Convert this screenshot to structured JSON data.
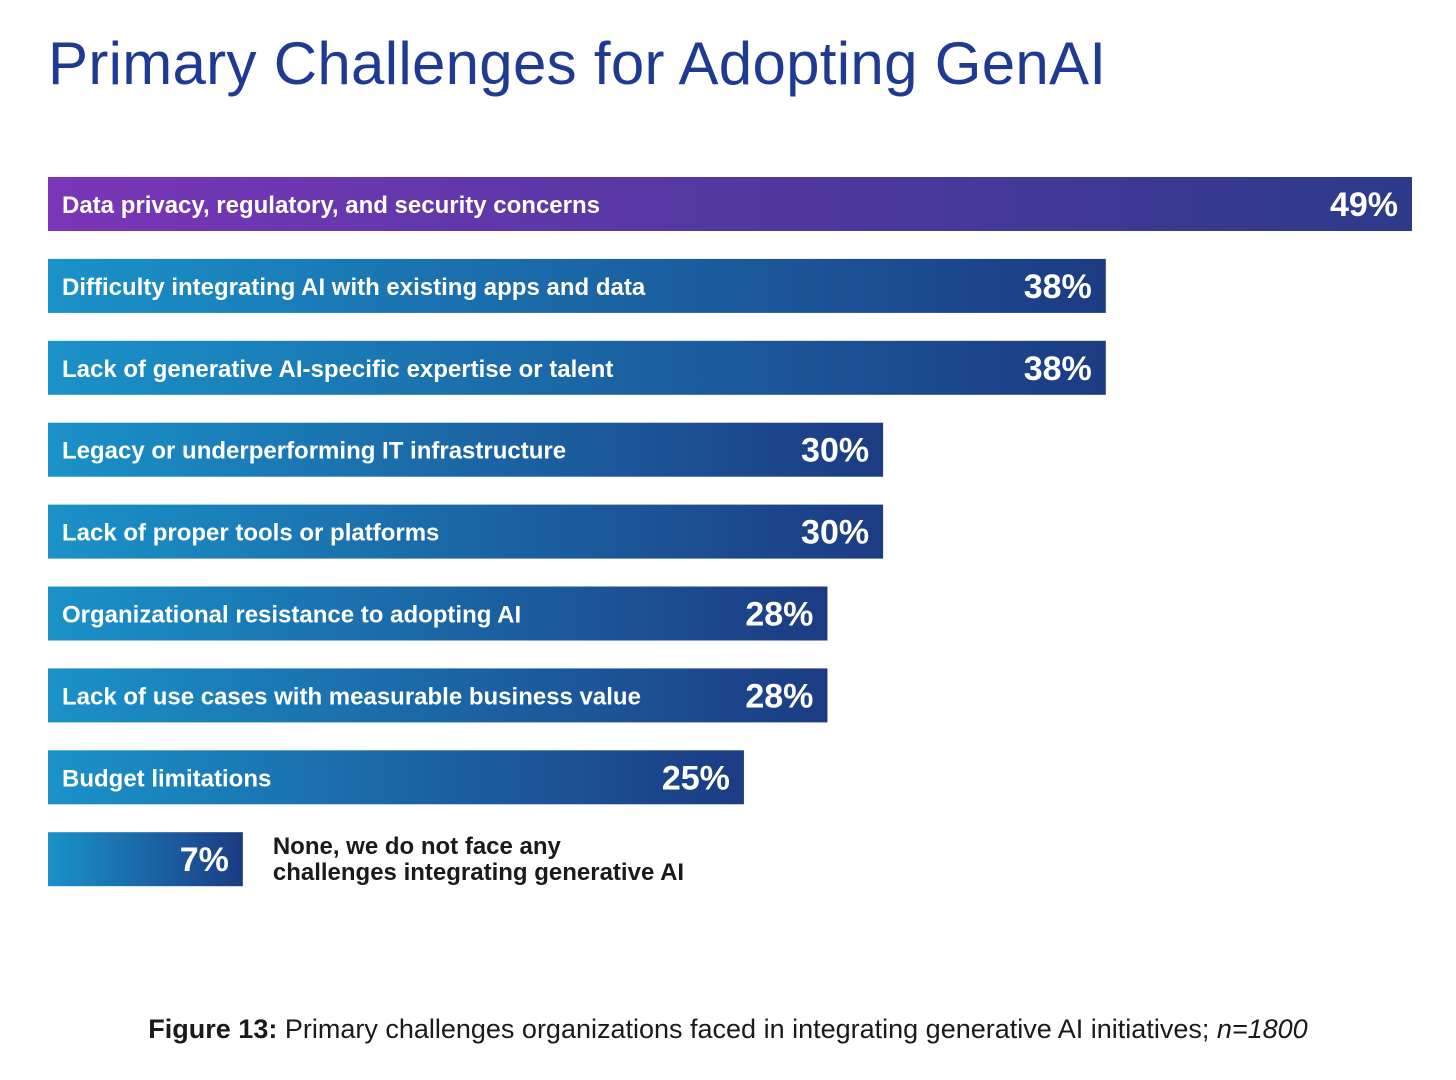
{
  "chart_data": {
    "type": "bar",
    "orientation": "horizontal",
    "title": "Primary Challenges for Adopting GenAI",
    "categories": [
      "Data privacy, regulatory, and security concerns",
      "Difficulty integrating AI with existing apps and data",
      "Lack of generative AI-specific expertise or talent",
      "Legacy or underperforming IT infrastructure",
      "Lack of proper tools or platforms",
      "Organizational resistance to adopting AI",
      "Lack of use cases with measurable business value",
      "Budget limitations",
      "None, we do not face any challenges integrating generative AI"
    ],
    "values": [
      49,
      38,
      38,
      30,
      30,
      28,
      28,
      25,
      7
    ],
    "value_labels": [
      "49%",
      "38%",
      "38%",
      "30%",
      "30%",
      "28%",
      "28%",
      "25%",
      "7%"
    ],
    "outside_label_lines": [
      "None, we do not face any",
      "challenges integrating generative AI"
    ],
    "xlim": [
      0,
      49
    ],
    "grid": false,
    "legend": false,
    "highlight_first_bar": true
  },
  "colors": {
    "title": "#1f3a93",
    "bar_gradient_start": "#1a92c8",
    "bar_gradient_end": "#1c3b83",
    "highlight_gradient_start": "#7a36b8",
    "highlight_gradient_end": "#2c3a8a"
  },
  "caption": {
    "label": "Figure 13:",
    "text": " Primary challenges organizations faced in integrating generative AI initiatives; ",
    "n": "n=1800"
  }
}
